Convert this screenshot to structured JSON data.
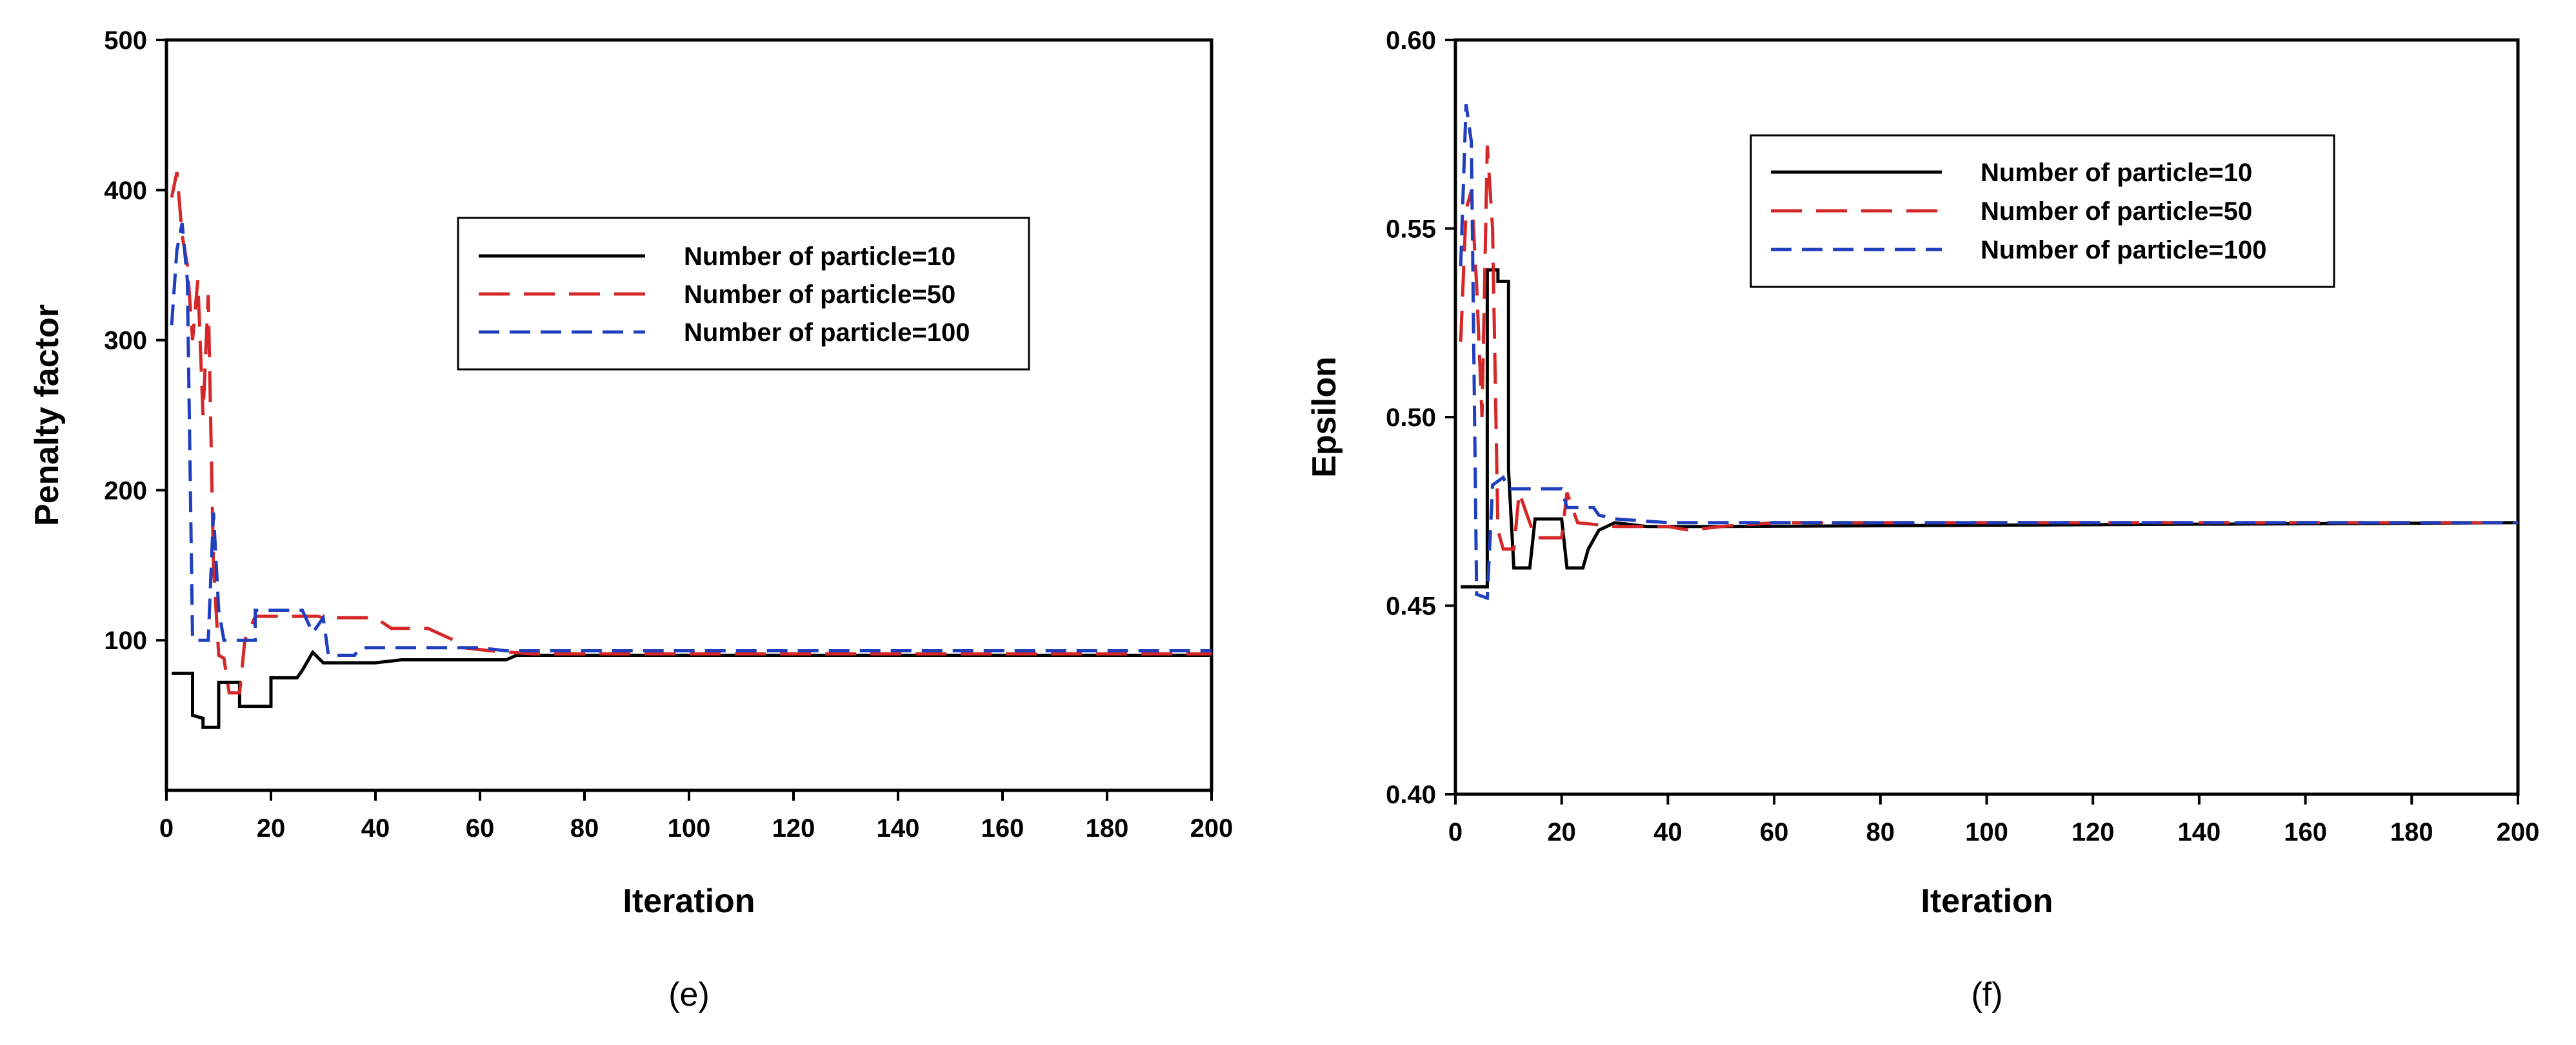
{
  "chart_data": [
    {
      "type": "line",
      "caption": "(e)",
      "xlabel": "Iteration",
      "ylabel": "Penalty factor",
      "xlim": [
        0,
        200
      ],
      "ylim": [
        0,
        500
      ],
      "xticks": [
        0,
        20,
        40,
        60,
        80,
        100,
        120,
        140,
        160,
        180,
        200
      ],
      "yticks": [
        100,
        200,
        300,
        400,
        500
      ],
      "legend_position": "upper-right",
      "series": [
        {
          "name": "Number of particle=10",
          "color": "#000000",
          "dash": "solid",
          "points": [
            [
              1,
              78
            ],
            [
              5,
              78
            ],
            [
              5,
              50
            ],
            [
              7,
              48
            ],
            [
              7,
              42
            ],
            [
              10,
              42
            ],
            [
              10,
              72
            ],
            [
              14,
              72
            ],
            [
              14,
              56
            ],
            [
              20,
              56
            ],
            [
              20,
              75
            ],
            [
              25,
              75
            ],
            [
              26,
              80
            ],
            [
              28,
              92
            ],
            [
              30,
              85
            ],
            [
              40,
              85
            ],
            [
              45,
              87
            ],
            [
              55,
              87
            ],
            [
              65,
              87
            ],
            [
              67,
              90
            ],
            [
              200,
              90
            ]
          ]
        },
        {
          "name": "Number of particle=50",
          "color": "#d62728",
          "dash": "long-dash",
          "points": [
            [
              1,
              395
            ],
            [
              2,
              412
            ],
            [
              3,
              370
            ],
            [
              4,
              350
            ],
            [
              5,
              300
            ],
            [
              6,
              340
            ],
            [
              7,
              250
            ],
            [
              8,
              330
            ],
            [
              9,
              150
            ],
            [
              10,
              90
            ],
            [
              11,
              88
            ],
            [
              12,
              65
            ],
            [
              14,
              65
            ],
            [
              15,
              100
            ],
            [
              17,
              116
            ],
            [
              29,
              116
            ],
            [
              30,
              115
            ],
            [
              40,
              115
            ],
            [
              43,
              108
            ],
            [
              50,
              108
            ],
            [
              55,
              100
            ],
            [
              57,
              95
            ],
            [
              62,
              93
            ],
            [
              70,
              91
            ],
            [
              200,
              91
            ]
          ]
        },
        {
          "name": "Number of particle=100",
          "color": "#1f3fbf",
          "dash": "dash",
          "points": [
            [
              1,
              310
            ],
            [
              2,
              360
            ],
            [
              3,
              378
            ],
            [
              4,
              340
            ],
            [
              5,
              100
            ],
            [
              8,
              100
            ],
            [
              9,
              185
            ],
            [
              10,
              120
            ],
            [
              11,
              100
            ],
            [
              17,
              100
            ],
            [
              17,
              120
            ],
            [
              26,
              120
            ],
            [
              28,
              105
            ],
            [
              30,
              115
            ],
            [
              31,
              90
            ],
            [
              36,
              90
            ],
            [
              37,
              95
            ],
            [
              60,
              95
            ],
            [
              65,
              93
            ],
            [
              200,
              93
            ]
          ]
        }
      ]
    },
    {
      "type": "line",
      "caption": "(f)",
      "xlabel": "Iteration",
      "ylabel": "Epsilon",
      "xlim": [
        0,
        200
      ],
      "ylim": [
        0.4,
        0.6
      ],
      "xticks": [
        0,
        20,
        40,
        60,
        80,
        100,
        120,
        140,
        160,
        180,
        200
      ],
      "yticks": [
        0.4,
        0.45,
        0.5,
        0.55,
        0.6
      ],
      "legend_position": "upper-right",
      "series": [
        {
          "name": "Number of particle=10",
          "color": "#000000",
          "dash": "solid",
          "points": [
            [
              1,
              0.455
            ],
            [
              6,
              0.455
            ],
            [
              6,
              0.539
            ],
            [
              8,
              0.539
            ],
            [
              8,
              0.536
            ],
            [
              10,
              0.536
            ],
            [
              10,
              0.486
            ],
            [
              11,
              0.46
            ],
            [
              14,
              0.46
            ],
            [
              15,
              0.473
            ],
            [
              20,
              0.473
            ],
            [
              21,
              0.46
            ],
            [
              24,
              0.46
            ],
            [
              25,
              0.465
            ],
            [
              27,
              0.47
            ],
            [
              30,
              0.472
            ],
            [
              36,
              0.471
            ],
            [
              50,
              0.471
            ],
            [
              200,
              0.472
            ]
          ]
        },
        {
          "name": "Number of particle=50",
          "color": "#d62728",
          "dash": "long-dash",
          "points": [
            [
              1,
              0.52
            ],
            [
              2,
              0.555
            ],
            [
              3,
              0.56
            ],
            [
              4,
              0.535
            ],
            [
              5,
              0.5
            ],
            [
              6,
              0.572
            ],
            [
              7,
              0.55
            ],
            [
              8,
              0.47
            ],
            [
              9,
              0.465
            ],
            [
              11,
              0.465
            ],
            [
              12,
              0.48
            ],
            [
              15,
              0.468
            ],
            [
              20,
              0.468
            ],
            [
              21,
              0.48
            ],
            [
              23,
              0.472
            ],
            [
              30,
              0.471
            ],
            [
              40,
              0.471
            ],
            [
              44,
              0.47
            ],
            [
              50,
              0.471
            ],
            [
              60,
              0.472
            ],
            [
              200,
              0.472
            ]
          ]
        },
        {
          "name": "Number of particle=100",
          "color": "#1f3fbf",
          "dash": "dash",
          "points": [
            [
              1,
              0.54
            ],
            [
              2,
              0.583
            ],
            [
              3,
              0.573
            ],
            [
              4,
              0.453
            ],
            [
              6,
              0.452
            ],
            [
              7,
              0.482
            ],
            [
              9,
              0.484
            ],
            [
              10,
              0.481
            ],
            [
              20,
              0.481
            ],
            [
              21,
              0.476
            ],
            [
              26,
              0.476
            ],
            [
              27,
              0.474
            ],
            [
              30,
              0.473
            ],
            [
              40,
              0.472
            ],
            [
              200,
              0.472
            ]
          ]
        }
      ]
    }
  ]
}
